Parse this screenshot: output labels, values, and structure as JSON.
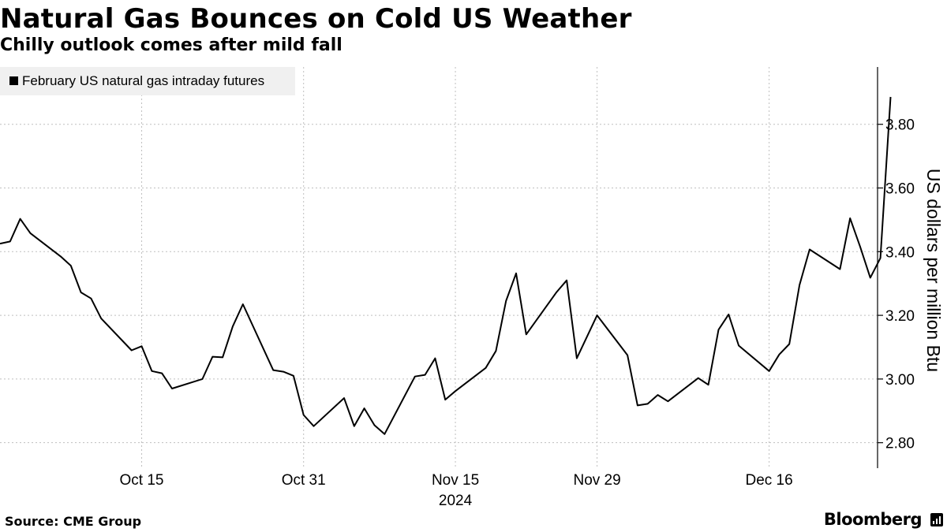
{
  "chart_data": {
    "type": "line",
    "title": "Natural Gas Bounces on Cold US Weather",
    "subtitle": "Chilly outlook comes after mild fall",
    "legend": "February US natural gas intraday futures",
    "ylabel": "US dollars per million Btu",
    "ylim": [
      2.72,
      3.98
    ],
    "yticks": [
      2.8,
      3.0,
      3.2,
      3.4,
      3.6,
      3.8
    ],
    "ytick_labels": [
      "2.80",
      "3.00",
      "3.20",
      "3.40",
      "3.60",
      "3.80"
    ],
    "x_range": [
      "2024-10-01",
      "2024-12-25"
    ],
    "xticks": [
      {
        "date": "2024-10-15",
        "label": "Oct 15"
      },
      {
        "date": "2024-10-31",
        "label": "Oct 31"
      },
      {
        "date": "2024-11-15",
        "label": "Nov 15"
      },
      {
        "date": "2024-11-29",
        "label": "Nov 29"
      },
      {
        "date": "2024-12-16",
        "label": "Dec 16"
      }
    ],
    "year_label": "2024",
    "grid": true,
    "series": [
      {
        "name": "February US natural gas intraday futures",
        "points": [
          [
            "2024-10-01",
            3.425
          ],
          [
            "2024-10-02",
            3.432
          ],
          [
            "2024-10-03",
            3.503
          ],
          [
            "2024-10-04",
            3.458
          ],
          [
            "2024-10-07",
            3.385
          ],
          [
            "2024-10-08",
            3.356
          ],
          [
            "2024-10-09",
            3.272
          ],
          [
            "2024-10-10",
            3.253
          ],
          [
            "2024-10-11",
            3.19
          ],
          [
            "2024-10-14",
            3.09
          ],
          [
            "2024-10-15",
            3.103
          ],
          [
            "2024-10-16",
            3.025
          ],
          [
            "2024-10-17",
            3.018
          ],
          [
            "2024-10-18",
            2.97
          ],
          [
            "2024-10-21",
            3.0
          ],
          [
            "2024-10-22",
            3.07
          ],
          [
            "2024-10-23",
            3.068
          ],
          [
            "2024-10-24",
            3.165
          ],
          [
            "2024-10-25",
            3.235
          ],
          [
            "2024-10-28",
            3.028
          ],
          [
            "2024-10-29",
            3.023
          ],
          [
            "2024-10-30",
            3.01
          ],
          [
            "2024-10-31",
            2.887
          ],
          [
            "2024-11-01",
            2.852
          ],
          [
            "2024-11-04",
            2.94
          ],
          [
            "2024-11-05",
            2.852
          ],
          [
            "2024-11-06",
            2.908
          ],
          [
            "2024-11-07",
            2.855
          ],
          [
            "2024-11-08",
            2.827
          ],
          [
            "2024-11-11",
            3.008
          ],
          [
            "2024-11-12",
            3.013
          ],
          [
            "2024-11-13",
            3.065
          ],
          [
            "2024-11-14",
            2.935
          ],
          [
            "2024-11-15",
            2.962
          ],
          [
            "2024-11-18",
            3.035
          ],
          [
            "2024-11-19",
            3.088
          ],
          [
            "2024-11-20",
            3.245
          ],
          [
            "2024-11-21",
            3.332
          ],
          [
            "2024-11-22",
            3.14
          ],
          [
            "2024-11-25",
            3.273
          ],
          [
            "2024-11-26",
            3.31
          ],
          [
            "2024-11-27",
            3.065
          ],
          [
            "2024-11-29",
            3.2
          ],
          [
            "2024-12-02",
            3.075
          ],
          [
            "2024-12-03",
            2.917
          ],
          [
            "2024-12-04",
            2.922
          ],
          [
            "2024-12-05",
            2.95
          ],
          [
            "2024-12-06",
            2.93
          ],
          [
            "2024-12-09",
            3.003
          ],
          [
            "2024-12-10",
            2.982
          ],
          [
            "2024-12-11",
            3.155
          ],
          [
            "2024-12-12",
            3.203
          ],
          [
            "2024-12-13",
            3.105
          ],
          [
            "2024-12-16",
            3.025
          ],
          [
            "2024-12-17",
            3.077
          ],
          [
            "2024-12-18",
            3.11
          ],
          [
            "2024-12-19",
            3.295
          ],
          [
            "2024-12-20",
            3.407
          ],
          [
            "2024-12-23",
            3.345
          ],
          [
            "2024-12-24",
            3.505
          ],
          [
            "2024-12-25",
            3.415
          ],
          [
            "2024-12-26",
            3.318
          ],
          [
            "2024-12-27",
            3.38
          ],
          [
            "2024-12-28",
            3.886
          ]
        ]
      }
    ]
  },
  "footer": {
    "source": "Source: CME Group",
    "brand": "Bloomberg"
  },
  "colors": {
    "line": "#000000",
    "grid": "#bfbfbf",
    "legend_bg": "#f0f0f0"
  }
}
